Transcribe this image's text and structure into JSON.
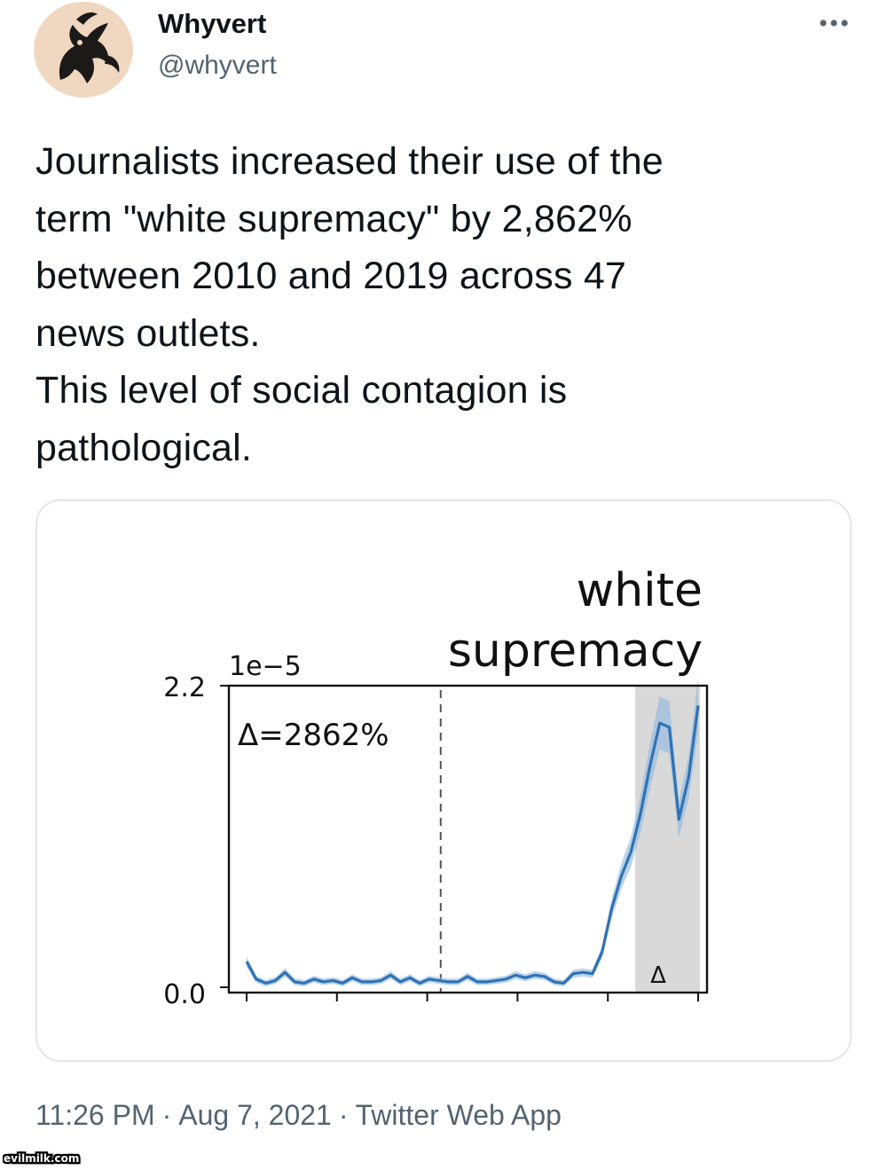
{
  "tweet": {
    "author": {
      "display_name": "Whyvert",
      "handle": "@whyvert",
      "avatar_icon": "dragon-emblem-icon"
    },
    "more_icon": "more-options-icon",
    "text": "Journalists increased their use of the\nterm \"white supremacy\" by 2,862%\nbetween 2010 and 2019 across 47\nnews outlets.\nThis level of social contagion is\npathological.",
    "timestamp": {
      "time": "11:26 PM",
      "date": "Aug 7, 2021",
      "source": "Twitter Web App"
    }
  },
  "chart_data": {
    "type": "line",
    "title": "white\nsupremacy",
    "title_lines": [
      "white",
      "supremacy"
    ],
    "y_multiplier_label": "1e−5",
    "y_ticks": [
      "2.2",
      "0.0"
    ],
    "ylim": [
      0.0,
      2.2
    ],
    "x_tick_count": 6,
    "x_labels_visible": false,
    "annotation_change": "Δ=2862%",
    "annotation_marker": "Δ",
    "grid": false,
    "legend": "none",
    "colors": {
      "line": "#2f72b5",
      "band": "#8db8dd",
      "shaded_region": "#d9d9d9",
      "dashed_line": "#555555"
    },
    "shaded_region_x": [
      0.85,
      1.0
    ],
    "dashed_line_x": 0.443,
    "series": [
      {
        "values": [
          0.19,
          0.06,
          0.03,
          0.05,
          0.11,
          0.04,
          0.03,
          0.06,
          0.04,
          0.05,
          0.03,
          0.07,
          0.04,
          0.04,
          0.05,
          0.09,
          0.04,
          0.07,
          0.03,
          0.06,
          0.05,
          0.04,
          0.04,
          0.08,
          0.04,
          0.04,
          0.05,
          0.06,
          0.09,
          0.07,
          0.09,
          0.08,
          0.04,
          0.03,
          0.1,
          0.11,
          0.1,
          0.26,
          0.58,
          0.82,
          1.0,
          1.28,
          1.64,
          1.95,
          1.92,
          1.24,
          1.55,
          2.08
        ]
      }
    ]
  }
}
